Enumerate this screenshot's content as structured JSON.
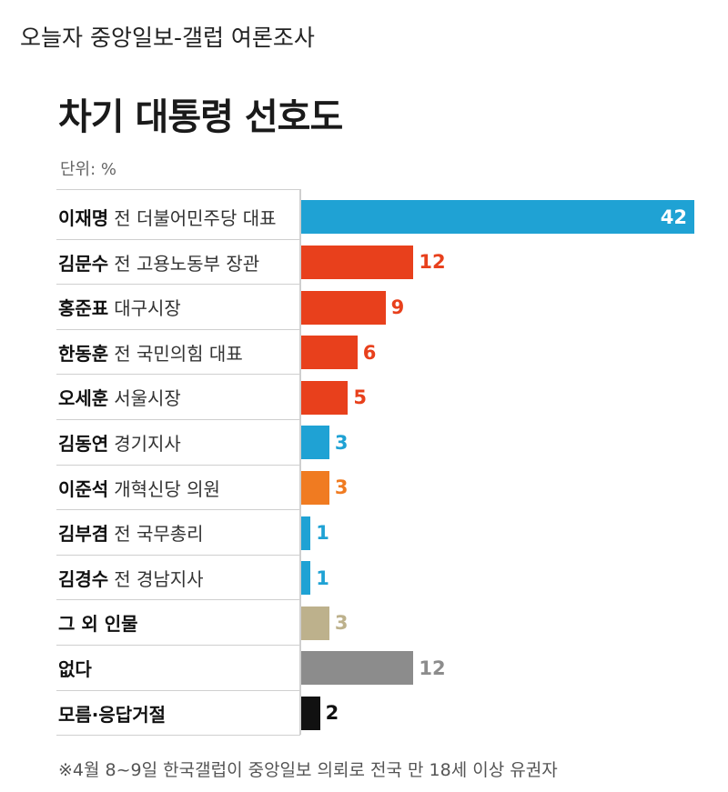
{
  "post_title": "오늘자 중앙일보-갤럽 여론조사",
  "chart_data": {
    "type": "bar",
    "orientation": "horizontal",
    "title": "차기 대통령 선호도",
    "unit_label": "단위: %",
    "xlim": [
      0,
      42
    ],
    "grid": false,
    "legend": "none",
    "rows": [
      {
        "name": "이재명",
        "role": "전 더불어민주당 대표",
        "value": 42,
        "value_label": "42",
        "color": "#1fa2d4",
        "label_inside": true
      },
      {
        "name": "김문수",
        "role": "전 고용노동부 장관",
        "value": 12,
        "value_label": "12",
        "color": "#e8401c"
      },
      {
        "name": "홍준표",
        "role": "대구시장",
        "value": 9,
        "value_label": "9",
        "color": "#e8401c"
      },
      {
        "name": "한동훈",
        "role": "전 국민의힘 대표",
        "value": 6,
        "value_label": "6",
        "color": "#e8401c"
      },
      {
        "name": "오세훈",
        "role": "서울시장",
        "value": 5,
        "value_label": "5",
        "color": "#e8401c"
      },
      {
        "name": "김동연",
        "role": "경기지사",
        "value": 3,
        "value_label": "3",
        "color": "#1fa2d4"
      },
      {
        "name": "이준석",
        "role": "개혁신당 의원",
        "value": 3,
        "value_label": "3",
        "color": "#f07b21"
      },
      {
        "name": "김부겸",
        "role": "전 국무총리",
        "value": 1,
        "value_label": "1",
        "color": "#1fa2d4"
      },
      {
        "name": "김경수",
        "role": "전 경남지사",
        "value": 1,
        "value_label": "1",
        "color": "#1fa2d4"
      },
      {
        "name": "그 외 인물",
        "role": "",
        "value": 3,
        "value_label": "3",
        "color": "#bdb18c"
      },
      {
        "name": "없다",
        "role": "",
        "value": 12,
        "value_label": "12",
        "color": "#8c8c8c"
      },
      {
        "name": "모름·응답거절",
        "role": "",
        "value": 2,
        "value_label": "2",
        "color": "#111111"
      }
    ],
    "footnote": "※4월 8~9일 한국갤럽이 중앙일보 의뢰로 전국 만 18세 이상 유권자"
  }
}
